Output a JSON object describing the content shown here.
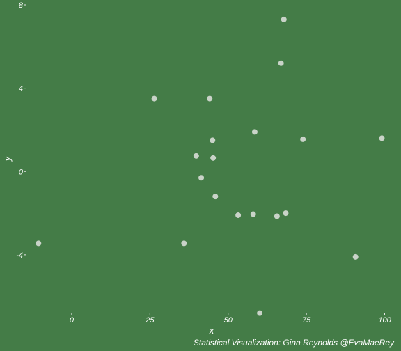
{
  "chart_data": {
    "type": "scatter",
    "title": "",
    "xlabel": "x",
    "ylabel": "y",
    "caption": "Statistical Visualization: Gina Reynolds @EvaMaeRey",
    "xlim": [
      -14,
      103
    ],
    "ylim": [
      -6.98,
      8
    ],
    "x_ticks": [
      0,
      25,
      50,
      75,
      100
    ],
    "x_tick_labels": [
      "0",
      "25",
      "50",
      "75",
      "100"
    ],
    "y_ticks": [
      -4,
      0,
      4,
      8
    ],
    "y_tick_labels": [
      "-4",
      "0",
      "4",
      "8"
    ],
    "grid": false,
    "background_color": "#447c47",
    "point_color": "#c9d3c8",
    "text_color": "#ffffff",
    "points": [
      {
        "x": 67.8,
        "y": 7.3
      },
      {
        "x": 66.9,
        "y": 5.2
      },
      {
        "x": 26.4,
        "y": 3.5
      },
      {
        "x": 44.1,
        "y": 3.5
      },
      {
        "x": 58.5,
        "y": 1.9
      },
      {
        "x": 45.0,
        "y": 1.5
      },
      {
        "x": 73.9,
        "y": 1.55
      },
      {
        "x": 99.1,
        "y": 1.6
      },
      {
        "x": 39.8,
        "y": 0.75
      },
      {
        "x": 45.2,
        "y": 0.65
      },
      {
        "x": 41.4,
        "y": -0.3
      },
      {
        "x": 45.9,
        "y": -1.2
      },
      {
        "x": 53.2,
        "y": -2.1
      },
      {
        "x": 58.0,
        "y": -2.05
      },
      {
        "x": 65.6,
        "y": -2.15
      },
      {
        "x": 68.4,
        "y": -2.0
      },
      {
        "x": -10.6,
        "y": -3.45
      },
      {
        "x": 35.9,
        "y": -3.45
      },
      {
        "x": 90.7,
        "y": -4.1
      },
      {
        "x": 60.1,
        "y": -6.8
      }
    ]
  }
}
